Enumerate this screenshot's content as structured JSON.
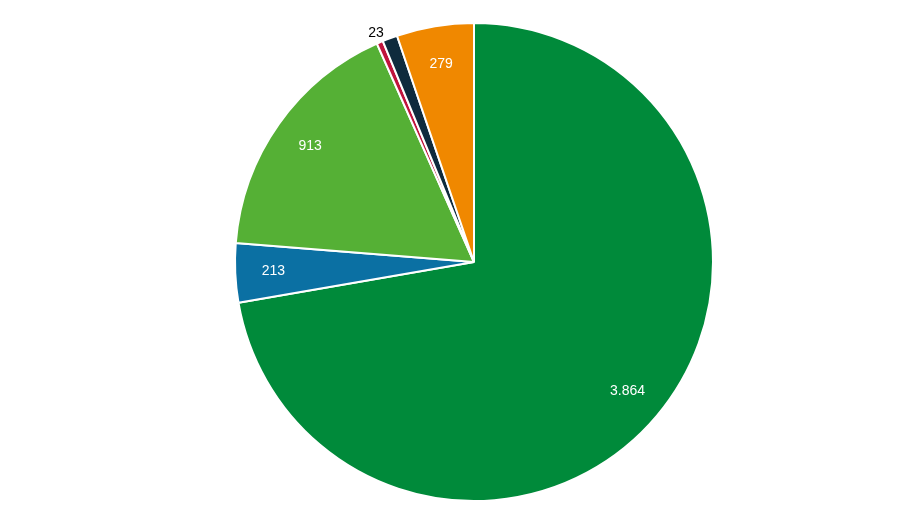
{
  "chart_data": {
    "type": "pie",
    "values": [
      3864,
      213,
      913,
      23,
      54,
      279
    ],
    "value_labels": [
      "3.864",
      "213",
      "913",
      "23",
      null,
      "279"
    ],
    "colors": [
      "#008a3a",
      "#0b70a3",
      "#55b035",
      "#c0143c",
      "#0f2b3d",
      "#f08800"
    ],
    "data_labels": true
  }
}
